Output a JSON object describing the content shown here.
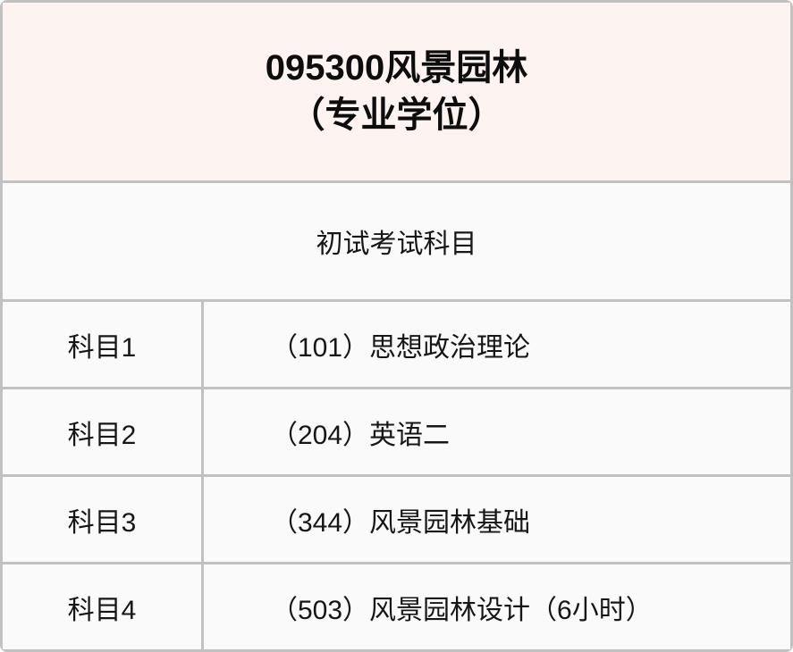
{
  "table": {
    "title_line1": "095300风景园林",
    "title_line2": "（专业学位）",
    "section_header": "初试考试科目",
    "rows": [
      {
        "label": "科目1",
        "value": "（101）思想政治理论"
      },
      {
        "label": "科目2",
        "value": "（204）英语二"
      },
      {
        "label": "科目3",
        "value": "（344）风景园林基础"
      },
      {
        "label": "科目4",
        "value": "（503）风景园林设计（6小时）"
      }
    ]
  },
  "colors": {
    "header_bg": "#fdf3f0",
    "row_bg": "#fafafa",
    "border": "#c1c1c1",
    "title_text": "#0d0d0d",
    "body_text": "#161616"
  }
}
